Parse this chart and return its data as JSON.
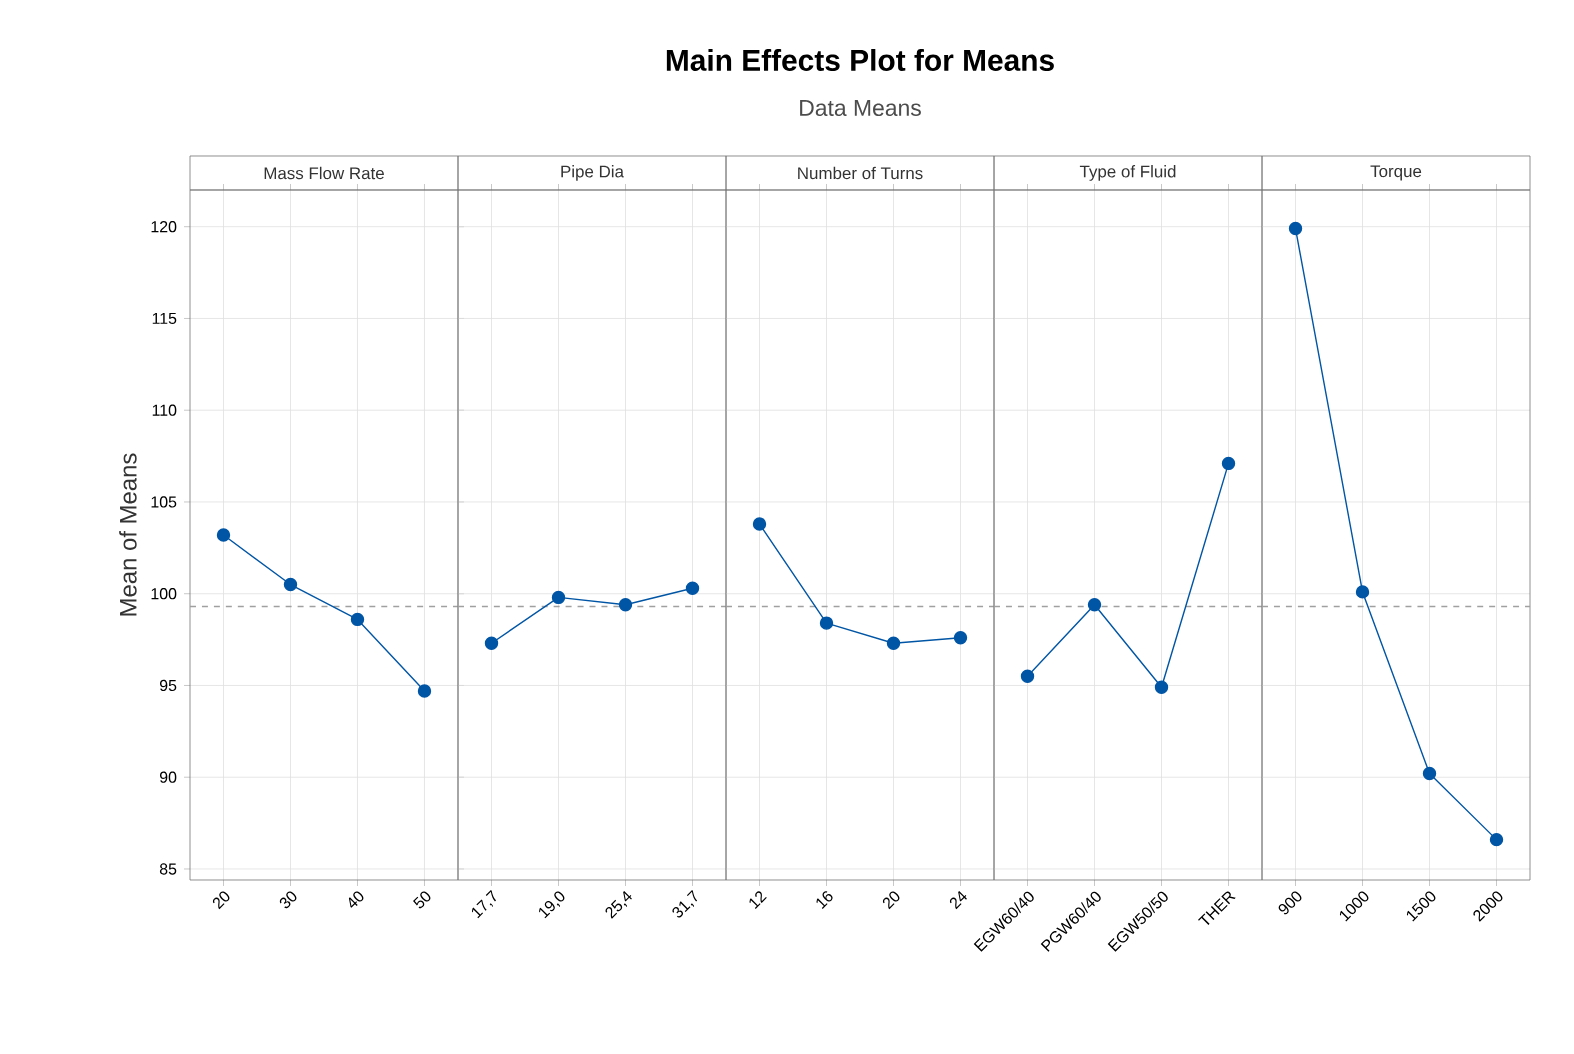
{
  "chart_data": [
    {
      "type": "line",
      "xlabel": "Mass Flow Rate",
      "ylabel": "Mean of Means",
      "categories": [
        "20",
        "30",
        "40",
        "50"
      ],
      "values": [
        103.2,
        100.5,
        98.6,
        94.7
      ],
      "color": "#0055a5",
      "ylim": [
        84.4,
        122
      ],
      "yticks": [
        85,
        90,
        95,
        100,
        105,
        110,
        115,
        120
      ],
      "grid": true,
      "marker": "circle",
      "line_style": "solid",
      "ref_lines": [
        {
          "axis": "y",
          "value": 99.3,
          "color": "#a0a0a0",
          "line_style": "dashed"
        }
      ]
    },
    {
      "type": "line",
      "xlabel": "Pipe Dia",
      "categories": [
        "17,7",
        "19,0",
        "25,4",
        "31,7"
      ],
      "values": [
        97.3,
        99.8,
        99.4,
        100.3
      ],
      "color": "#0055a5",
      "ylim": [
        84.4,
        122
      ],
      "yticks": [
        85,
        90,
        95,
        100,
        105,
        110,
        115,
        120
      ],
      "tick_labels": "x",
      "grid": true,
      "marker": "circle",
      "line_style": "solid",
      "ref_lines": [
        {
          "axis": "y",
          "value": 99.3,
          "color": "#a0a0a0",
          "line_style": "dashed"
        }
      ]
    },
    {
      "type": "line",
      "title": "Main Effects Plot for Means",
      "subtitle": "Data Means",
      "xlabel": "Number of Turns",
      "categories": [
        "12",
        "16",
        "20",
        "24"
      ],
      "values": [
        103.8,
        98.4,
        97.3,
        97.6
      ],
      "color": "#0055a5",
      "ylim": [
        84.4,
        122
      ],
      "yticks": [
        85,
        90,
        95,
        100,
        105,
        110,
        115,
        120
      ],
      "tick_labels": "x",
      "grid": true,
      "marker": "circle",
      "line_style": "solid",
      "ref_lines": [
        {
          "axis": "y",
          "value": 99.3,
          "color": "#a0a0a0",
          "line_style": "dashed"
        }
      ]
    },
    {
      "type": "line",
      "xlabel": "Type of Fluid",
      "categories": [
        "EGW60/40",
        "PGW60/40",
        "EGW50/50",
        "THER"
      ],
      "values": [
        95.5,
        99.4,
        94.9,
        107.1
      ],
      "color": "#0055a5",
      "ylim": [
        84.4,
        122
      ],
      "yticks": [
        85,
        90,
        95,
        100,
        105,
        110,
        115,
        120
      ],
      "tick_labels": "x",
      "grid": true,
      "marker": "circle",
      "line_style": "solid",
      "ref_lines": [
        {
          "axis": "y",
          "value": 99.3,
          "color": "#a0a0a0",
          "line_style": "dashed"
        }
      ]
    },
    {
      "type": "line",
      "xlabel": "Torque",
      "categories": [
        "900",
        "1000",
        "1500",
        "2000"
      ],
      "values": [
        119.9,
        100.1,
        90.2,
        86.6
      ],
      "color": "#0055a5",
      "ylim": [
        84.4,
        122
      ],
      "yticks": [
        85,
        90,
        95,
        100,
        105,
        110,
        115,
        120
      ],
      "tick_labels": "x",
      "grid": true,
      "marker": "circle",
      "line_style": "solid",
      "ref_lines": [
        {
          "axis": "y",
          "value": 99.3,
          "color": "#a0a0a0",
          "line_style": "dashed"
        }
      ]
    }
  ]
}
